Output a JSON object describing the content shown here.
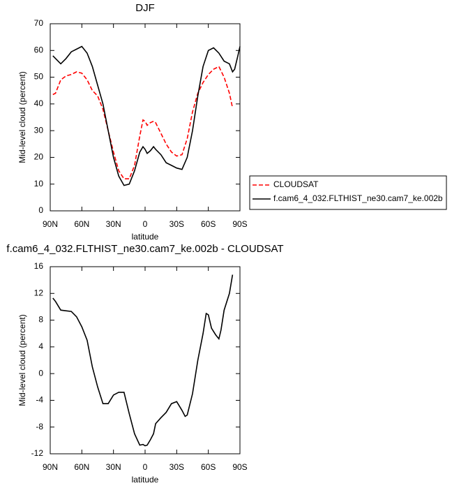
{
  "chart_data": [
    {
      "type": "line",
      "title": "DJF",
      "xlabel": "latitude",
      "ylabel": "Mid-level cloud (percent)",
      "x": [
        87.5,
        85,
        80,
        75,
        70,
        65,
        60,
        55,
        50,
        45,
        40,
        35,
        30,
        25,
        20,
        15,
        10,
        5,
        2,
        0,
        -2,
        -5,
        -8,
        -10,
        -15,
        -20,
        -25,
        -30,
        -35,
        -40,
        -45,
        -50,
        -55,
        -60,
        -65,
        -70,
        -75,
        -80,
        -83,
        -85,
        -88,
        -90
      ],
      "series": [
        {
          "name": "CLOUDSAT",
          "color": "#ff0000",
          "linestyle": "dashed",
          "values": [
            43.5,
            44,
            49,
            50.5,
            51,
            52,
            51.5,
            49,
            45,
            43,
            38,
            30,
            22,
            15,
            12,
            12,
            17,
            28,
            34,
            33.5,
            32,
            33,
            33.5,
            33,
            29,
            25,
            22,
            20.5,
            21,
            27,
            37,
            44,
            48,
            51,
            53,
            54,
            50,
            44,
            38.5,
            null,
            null,
            null
          ]
        },
        {
          "name": "f.cam6_4_032.FLTHIST_ne30.cam7_ke.002b",
          "color": "#000000",
          "linestyle": "solid",
          "values": [
            58,
            57,
            55,
            57,
            59.5,
            60.5,
            61.5,
            59,
            54,
            47,
            40,
            30,
            20,
            13,
            9.5,
            10,
            15,
            22,
            24,
            23,
            21.5,
            22.5,
            24,
            23,
            21,
            18,
            17,
            16,
            15.5,
            20,
            30,
            43,
            54,
            60,
            61,
            59,
            56,
            55,
            52,
            53,
            58,
            61.5
          ]
        }
      ],
      "xlim": [
        90,
        -90
      ],
      "xticks": [
        {
          "value": 90,
          "label": "90N"
        },
        {
          "value": 60,
          "label": "60N"
        },
        {
          "value": 30,
          "label": "30N"
        },
        0,
        {
          "value": -30,
          "label": "30S"
        },
        {
          "value": -60,
          "label": "60S"
        },
        {
          "value": -90,
          "label": "90S"
        }
      ],
      "ylim": [
        0,
        70
      ],
      "yticks": [
        0,
        10,
        20,
        30,
        40,
        50,
        60,
        70
      ],
      "legend": "outside-right"
    },
    {
      "type": "line",
      "title": "f.cam6_4_032.FLTHIST_ne30.cam7_ke.002b - CLOUDSAT",
      "xlabel": "latitude",
      "ylabel": "Mid-level cloud (percent)",
      "x": [
        87.5,
        85,
        80,
        75,
        70,
        65,
        60,
        55,
        50,
        45,
        40,
        35,
        30,
        25,
        20,
        15,
        10,
        5,
        2,
        0,
        -2,
        -5,
        -8,
        -10,
        -15,
        -20,
        -25,
        -30,
        -35,
        -38,
        -40,
        -45,
        -50,
        -55,
        -58,
        -60,
        -63,
        -67,
        -70,
        -72,
        -75,
        -80,
        -83
      ],
      "series": [
        {
          "color": "#000000",
          "linestyle": "solid",
          "values": [
            11.3,
            10.8,
            9.5,
            9.4,
            9.3,
            8.5,
            7,
            5,
            1,
            -2,
            -4.5,
            -4.5,
            -3.2,
            -2.8,
            -2.8,
            -6,
            -9,
            -10.7,
            -10.6,
            -10.8,
            -10.7,
            -9.9,
            -9,
            -7.5,
            -6.6,
            -5.8,
            -4.5,
            -4.2,
            -5.5,
            -6.4,
            -6.2,
            -3,
            2,
            6,
            9,
            8.8,
            6.8,
            5.8,
            5.2,
            6.5,
            9.5,
            12,
            14.8
          ]
        }
      ],
      "xlim": [
        90,
        -90
      ],
      "xticks": [
        {
          "value": 90,
          "label": "90N"
        },
        {
          "value": 60,
          "label": "60N"
        },
        {
          "value": 30,
          "label": "30N"
        },
        0,
        {
          "value": -30,
          "label": "30S"
        },
        {
          "value": -60,
          "label": "60S"
        },
        {
          "value": -90,
          "label": "90S"
        }
      ],
      "ylim": [
        -12,
        16
      ],
      "yticks": [
        -12,
        -8,
        -4,
        0,
        4,
        8,
        12,
        16
      ]
    }
  ]
}
